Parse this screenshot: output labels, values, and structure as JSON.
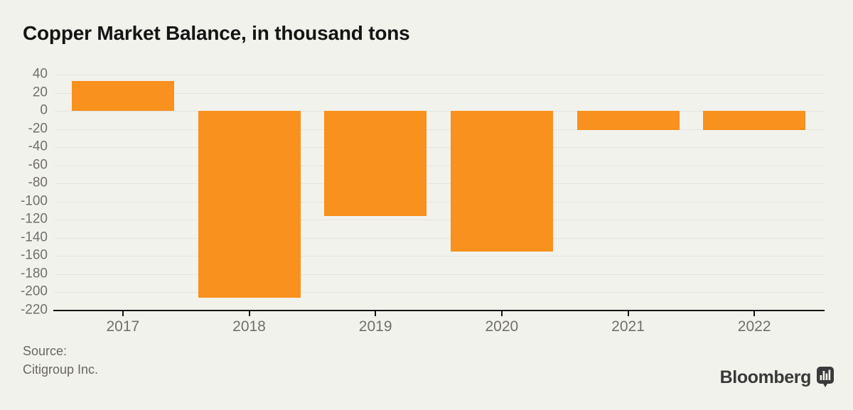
{
  "title": "Copper Market Balance, in thousand tons",
  "source": {
    "line1": "Source:",
    "line2": "Citigroup Inc."
  },
  "branding": {
    "name": "Bloomberg",
    "icon": "bloomberg-chart-bubble-icon"
  },
  "colors": {
    "background": "#f2f2ec",
    "bar": "#f8911d",
    "gridline": "#e4e3e3",
    "axis": "#141414",
    "tick_label": "#716f6d",
    "source_text": "#696661",
    "brand": "#3a393b"
  },
  "chart_data": {
    "type": "bar",
    "title": "Copper Market Balance, in thousand tons",
    "categories": [
      "2017",
      "2018",
      "2019",
      "2020",
      "2021",
      "2022"
    ],
    "values": [
      33,
      -206,
      -116,
      -155,
      -21,
      -21
    ],
    "xlabel": "",
    "ylabel": "thousand tons",
    "ylim": [
      -220,
      40
    ],
    "ytick_step": 20,
    "yticks": [
      40,
      20,
      0,
      -20,
      -40,
      -60,
      -80,
      -100,
      -120,
      -140,
      -160,
      -180,
      -200,
      -220
    ],
    "grid": true,
    "legend": "none",
    "bar_color": "#f8911d"
  }
}
